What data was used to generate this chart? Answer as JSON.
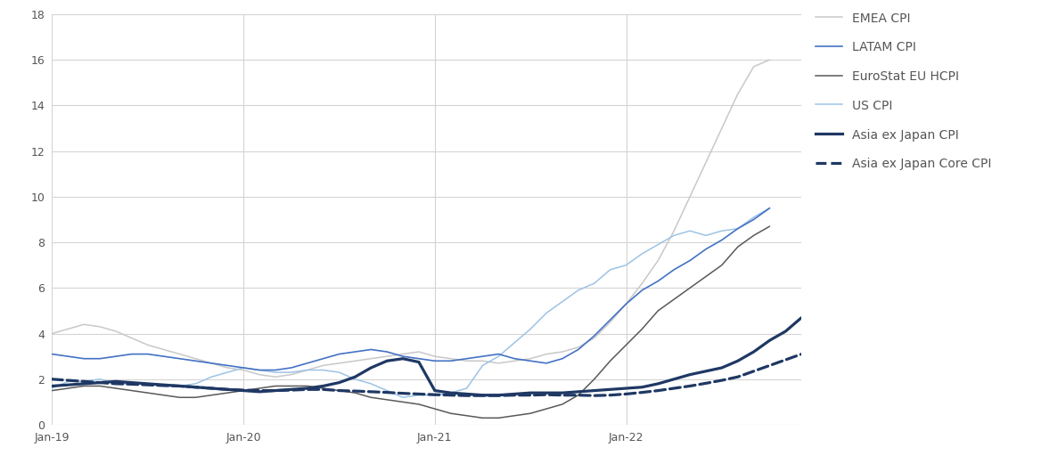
{
  "xlim_start": 0,
  "xlim_end": 47,
  "ylim": [
    0,
    18
  ],
  "yticks": [
    0,
    2,
    4,
    6,
    8,
    10,
    12,
    14,
    16,
    18
  ],
  "xtick_labels": [
    "Jan-19",
    "Jan-20",
    "Jan-21",
    "Jan-22"
  ],
  "xtick_positions": [
    0,
    12,
    24,
    36
  ],
  "background_color": "#ffffff",
  "grid_color": "#d4d4d4",
  "series": {
    "EMEA CPI": {
      "color": "#c8c8c8",
      "linewidth": 1.1,
      "linestyle": "solid",
      "zorder": 2,
      "values": [
        4.0,
        4.2,
        4.4,
        4.3,
        4.1,
        3.8,
        3.5,
        3.3,
        3.1,
        2.9,
        2.7,
        2.5,
        2.4,
        2.2,
        2.1,
        2.2,
        2.4,
        2.6,
        2.7,
        2.8,
        2.9,
        3.0,
        3.1,
        3.2,
        3.0,
        2.9,
        2.8,
        2.8,
        2.7,
        2.8,
        2.9,
        3.1,
        3.2,
        3.4,
        3.8,
        4.5,
        5.3,
        6.2,
        7.2,
        8.5,
        10.0,
        11.5,
        13.0,
        14.5,
        15.7,
        16.0,
        null,
        null
      ]
    },
    "LATAM CPI": {
      "color": "#4472c4",
      "linewidth": 1.2,
      "linestyle": "solid",
      "zorder": 3,
      "values": [
        3.1,
        3.0,
        2.9,
        2.9,
        3.0,
        3.1,
        3.1,
        3.0,
        2.9,
        2.8,
        2.7,
        2.6,
        2.5,
        2.4,
        2.4,
        2.5,
        2.7,
        2.9,
        3.1,
        3.2,
        3.3,
        3.2,
        3.0,
        2.9,
        2.8,
        2.8,
        2.9,
        3.0,
        3.1,
        2.9,
        2.8,
        2.7,
        2.9,
        3.3,
        3.9,
        4.6,
        5.3,
        5.9,
        6.3,
        6.8,
        7.2,
        7.7,
        8.1,
        8.6,
        9.0,
        9.5,
        null,
        null
      ]
    },
    "EuroStat EU HCPI": {
      "color": "#595959",
      "linewidth": 1.1,
      "linestyle": "solid",
      "zorder": 2,
      "values": [
        1.5,
        1.6,
        1.7,
        1.7,
        1.6,
        1.5,
        1.4,
        1.3,
        1.2,
        1.2,
        1.3,
        1.4,
        1.5,
        1.6,
        1.7,
        1.7,
        1.7,
        1.6,
        1.5,
        1.4,
        1.2,
        1.1,
        1.0,
        0.9,
        0.7,
        0.5,
        0.4,
        0.3,
        0.3,
        0.4,
        0.5,
        0.7,
        0.9,
        1.3,
        2.0,
        2.8,
        3.5,
        4.2,
        5.0,
        5.5,
        6.0,
        6.5,
        7.0,
        7.8,
        8.3,
        8.7,
        null,
        null
      ]
    },
    "US CPI": {
      "color": "#9dc3e6",
      "linewidth": 1.1,
      "linestyle": "solid",
      "zorder": 2,
      "values": [
        1.6,
        1.9,
        1.9,
        2.0,
        1.8,
        1.8,
        1.8,
        1.7,
        1.7,
        1.8,
        2.1,
        2.3,
        2.5,
        2.4,
        2.3,
        2.3,
        2.4,
        2.4,
        2.3,
        2.0,
        1.8,
        1.5,
        1.2,
        1.3,
        1.3,
        1.4,
        1.6,
        2.6,
        3.0,
        3.6,
        4.2,
        4.9,
        5.4,
        5.9,
        6.2,
        6.8,
        7.0,
        7.5,
        7.9,
        8.3,
        8.5,
        8.3,
        8.5,
        8.6,
        9.1,
        9.5,
        null,
        null
      ]
    },
    "Asia ex Japan CPI": {
      "color": "#1f3864",
      "linewidth": 2.3,
      "linestyle": "solid",
      "zorder": 5,
      "values": [
        1.7,
        1.75,
        1.8,
        1.85,
        1.9,
        1.85,
        1.8,
        1.75,
        1.7,
        1.65,
        1.6,
        1.55,
        1.5,
        1.45,
        1.5,
        1.55,
        1.6,
        1.7,
        1.85,
        2.1,
        2.5,
        2.8,
        2.9,
        2.75,
        1.5,
        1.4,
        1.35,
        1.3,
        1.3,
        1.35,
        1.4,
        1.4,
        1.4,
        1.45,
        1.5,
        1.55,
        1.6,
        1.65,
        1.8,
        2.0,
        2.2,
        2.35,
        2.5,
        2.8,
        3.2,
        3.7,
        4.1,
        4.7
      ]
    },
    "Asia ex Japan Core CPI": {
      "color": "#1f3864",
      "linewidth": 2.3,
      "linestyle": "dashed",
      "zorder": 4,
      "values": [
        2.0,
        1.95,
        1.9,
        1.85,
        1.8,
        1.78,
        1.75,
        1.72,
        1.7,
        1.65,
        1.6,
        1.55,
        1.52,
        1.5,
        1.5,
        1.52,
        1.55,
        1.55,
        1.5,
        1.48,
        1.45,
        1.42,
        1.38,
        1.35,
        1.32,
        1.3,
        1.28,
        1.28,
        1.28,
        1.3,
        1.3,
        1.32,
        1.3,
        1.3,
        1.28,
        1.3,
        1.35,
        1.42,
        1.5,
        1.6,
        1.7,
        1.82,
        1.95,
        2.1,
        2.35,
        2.6,
        2.85,
        3.1
      ]
    }
  },
  "legend_labels": [
    "EMEA CPI",
    "LATAM CPI",
    "EuroStat EU HCPI",
    "US CPI",
    "Asia ex Japan CPI",
    "Asia ex Japan Core CPI"
  ]
}
